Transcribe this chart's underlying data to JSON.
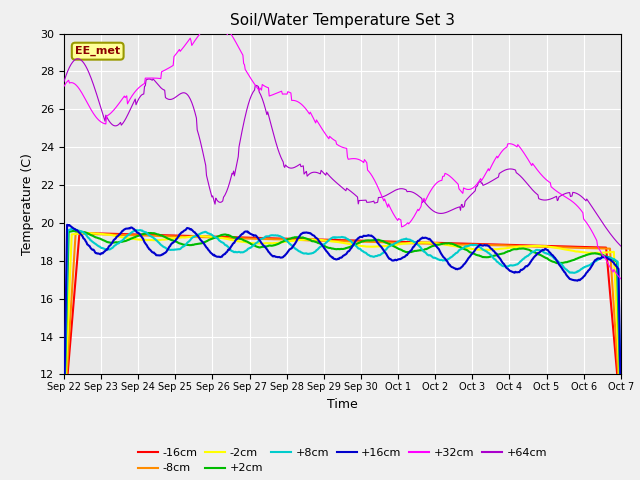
{
  "title": "Soil/Water Temperature Set 3",
  "xlabel": "Time",
  "ylabel": "Temperature (C)",
  "ylim": [
    12,
    30
  ],
  "yticks": [
    12,
    14,
    16,
    18,
    20,
    22,
    24,
    26,
    28,
    30
  ],
  "annotation_text": "EE_met",
  "annotation_color": "#8B0000",
  "annotation_bg": "#FFFF99",
  "annotation_border": "#999900",
  "fig_bg": "#F0F0F0",
  "plot_bg": "#E8E8E8",
  "series_colors": {
    "-16cm": "#FF0000",
    "-8cm": "#FF8C00",
    "-2cm": "#FFFF00",
    "+2cm": "#00BB00",
    "+8cm": "#00CCCC",
    "+16cm": "#0000CC",
    "+32cm": "#FF00FF",
    "+64cm": "#AA00CC"
  },
  "n_points": 720
}
